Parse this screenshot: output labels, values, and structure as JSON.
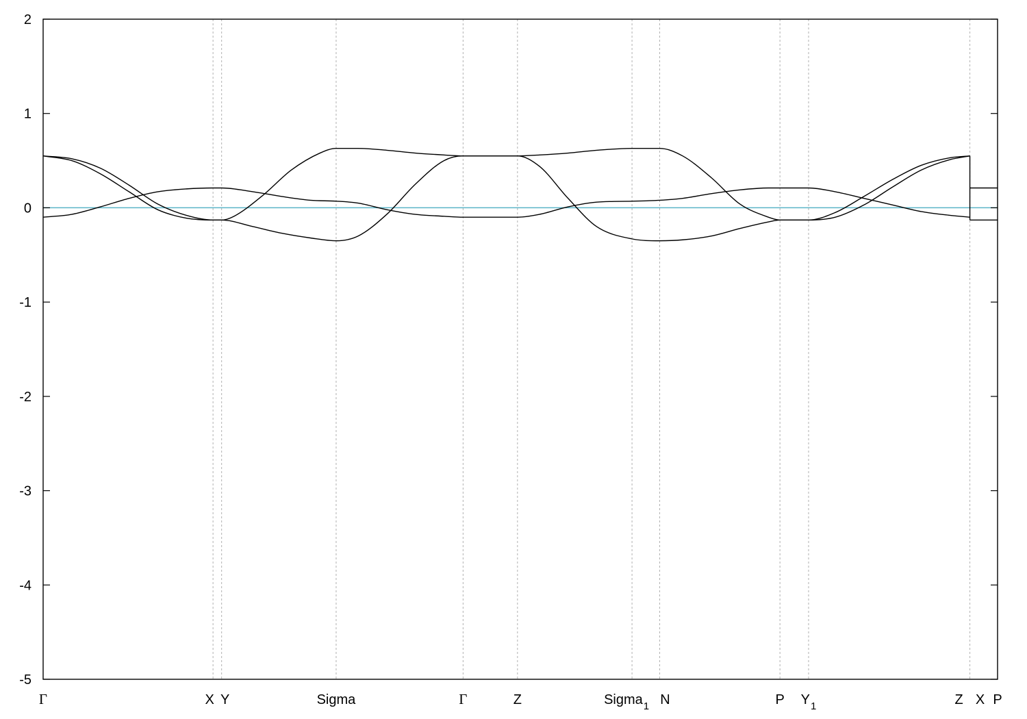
{
  "chart_data": {
    "type": "line",
    "title": "",
    "xlabel": "",
    "ylabel": "",
    "ylim": [
      -5,
      2
    ],
    "yticks": [
      "2",
      "1",
      "0",
      "-1",
      "-2",
      "-3",
      "-4",
      "-5"
    ],
    "xlim": [
      0,
      1
    ],
    "high_symmetry_points": [
      {
        "label": "Γ",
        "x": 0.0,
        "line": false
      },
      {
        "label": "X",
        "x": 0.178,
        "line": true
      },
      {
        "label": "Y",
        "x": 0.187,
        "line": true
      },
      {
        "label": "Sigma",
        "x": 0.307,
        "line": true
      },
      {
        "label": "Γ",
        "x": 0.44,
        "line": true
      },
      {
        "label": "Z",
        "x": 0.497,
        "line": true
      },
      {
        "label": "Sigma",
        "sub": "1",
        "x": 0.617,
        "line": true
      },
      {
        "label": "N",
        "x": 0.646,
        "line": true
      },
      {
        "label": "P",
        "x": 0.772,
        "line": true
      },
      {
        "label": "Y",
        "sub": "1",
        "x": 0.802,
        "line": true
      },
      {
        "label": "Z",
        "x": 0.971,
        "line": true
      },
      {
        "label": "X",
        "x": 0.971,
        "line": false
      },
      {
        "label": "P",
        "x": 1.0,
        "line": false
      }
    ],
    "fermi_level": {
      "y": 0,
      "color": "#5ab4c8"
    },
    "band_color": "#000000",
    "grid": false,
    "legend": "none",
    "series": [
      {
        "x": [
          0.0,
          0.03,
          0.06,
          0.09,
          0.12,
          0.15,
          0.178,
          0.187,
          0.22,
          0.25,
          0.28,
          0.307,
          0.33,
          0.36,
          0.39,
          0.42,
          0.44,
          0.497,
          0.52,
          0.55,
          0.58,
          0.617,
          0.646,
          0.67,
          0.7,
          0.73,
          0.76,
          0.772,
          0.802,
          0.83,
          0.86,
          0.89,
          0.92,
          0.95,
          0.971
        ],
        "y": [
          -0.1,
          -0.07,
          0.01,
          0.1,
          0.17,
          0.2,
          0.21,
          0.21,
          0.17,
          0.12,
          0.08,
          0.07,
          0.05,
          -0.02,
          -0.07,
          -0.09,
          -0.1,
          -0.1,
          -0.07,
          0.01,
          0.06,
          0.07,
          0.08,
          0.1,
          0.15,
          0.19,
          0.21,
          0.21,
          0.21,
          0.17,
          0.1,
          0.03,
          -0.04,
          -0.08,
          -0.1
        ]
      },
      {
        "x": [
          0.0,
          0.03,
          0.06,
          0.09,
          0.12,
          0.15,
          0.178,
          0.187,
          0.2,
          0.23,
          0.26,
          0.29,
          0.307,
          0.33,
          0.36,
          0.39,
          0.42,
          0.44,
          0.497,
          0.52,
          0.55,
          0.58,
          0.617,
          0.646,
          0.67,
          0.7,
          0.73,
          0.76,
          0.772,
          0.802,
          0.83,
          0.86,
          0.89,
          0.92,
          0.95,
          0.971
        ],
        "y": [
          0.55,
          0.52,
          0.42,
          0.24,
          0.04,
          -0.08,
          -0.13,
          -0.13,
          -0.09,
          0.13,
          0.4,
          0.58,
          0.63,
          0.63,
          0.61,
          0.58,
          0.56,
          0.55,
          0.55,
          0.56,
          0.58,
          0.61,
          0.63,
          0.63,
          0.55,
          0.32,
          0.04,
          -0.1,
          -0.13,
          -0.13,
          -0.1,
          0.03,
          0.22,
          0.4,
          0.51,
          0.55
        ]
      },
      {
        "x": [
          0.0,
          0.03,
          0.06,
          0.09,
          0.12,
          0.15,
          0.178,
          0.187,
          0.22,
          0.25,
          0.28,
          0.307,
          0.33,
          0.36,
          0.39,
          0.42,
          0.44,
          0.497,
          0.52,
          0.55,
          0.58,
          0.617,
          0.646,
          0.67,
          0.7,
          0.73,
          0.76,
          0.772,
          0.802,
          0.83,
          0.86,
          0.89,
          0.92,
          0.95,
          0.971
        ],
        "y": [
          0.55,
          0.5,
          0.36,
          0.17,
          -0.02,
          -0.11,
          -0.13,
          -0.13,
          -0.2,
          -0.27,
          -0.32,
          -0.35,
          -0.3,
          -0.07,
          0.25,
          0.5,
          0.55,
          0.55,
          0.44,
          0.1,
          -0.2,
          -0.33,
          -0.35,
          -0.34,
          -0.3,
          -0.22,
          -0.15,
          -0.13,
          -0.13,
          -0.05,
          0.12,
          0.3,
          0.45,
          0.53,
          0.55
        ]
      },
      {
        "x": [
          0.971,
          1.0
        ],
        "y": [
          0.21,
          0.21
        ]
      },
      {
        "x": [
          0.971,
          1.0
        ],
        "y": [
          -0.13,
          -0.13
        ]
      }
    ]
  }
}
